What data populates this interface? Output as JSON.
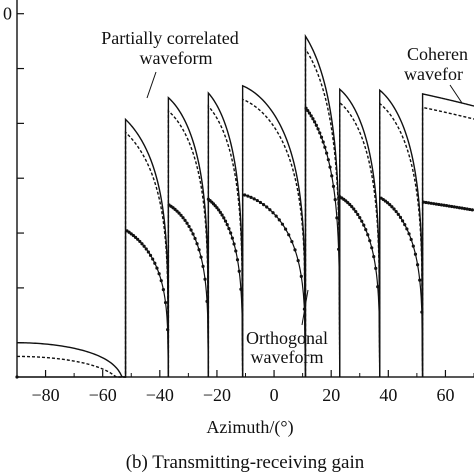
{
  "chart_data": {
    "type": "line",
    "title": "",
    "xlabel": "Azimuth/(°)",
    "ylabel": "",
    "caption": "(b) Transmitting-receiving gain",
    "xlim": [
      -90,
      70
    ],
    "ylim": [
      -53,
      2
    ],
    "x_ticks": [
      -80,
      -60,
      -40,
      -20,
      0,
      20,
      40,
      60
    ],
    "x_tick_labels": [
      "−80",
      "−60",
      "−40",
      "−20",
      "0",
      "20",
      "40",
      "60"
    ],
    "y_tick_labels": [
      "0",
      "",
      "",
      "",
      "",
      "",
      ""
    ],
    "y_ticks": [
      0,
      -8,
      -16,
      -24,
      -32,
      -40,
      -48
    ],
    "grid": false,
    "annotations": [
      {
        "text": "Partially correlated",
        "target_series": "partially_correlated"
      },
      {
        "text": "waveform",
        "target_series": "partially_correlated"
      },
      {
        "text": "Coheren",
        "target_series": "coherent"
      },
      {
        "text": "wavefor",
        "target_series": "coherent"
      },
      {
        "text": "Orthogonal",
        "target_series": "orthogonal"
      },
      {
        "text": "waveform",
        "target_series": "orthogonal"
      }
    ],
    "series": [
      {
        "key": "coherent",
        "style": "solid",
        "color": "#111111",
        "nulls": [
          -52,
          -37,
          -23,
          -11,
          11,
          23,
          37,
          52
        ],
        "peaks": [
          [
            -90,
            -48
          ],
          [
            -65,
            -13
          ],
          [
            -44,
            -11
          ],
          [
            -30,
            -10
          ],
          [
            -17,
            -10
          ],
          [
            0,
            0
          ],
          [
            17,
            -10
          ],
          [
            30,
            -10
          ],
          [
            44,
            -11
          ],
          [
            63,
            -13
          ],
          [
            70,
            -14
          ]
        ]
      },
      {
        "key": "partially_correlated",
        "style": "dashed",
        "color": "#111111",
        "nulls": [
          -52,
          -37,
          -23,
          -11,
          11,
          23,
          37,
          52
        ],
        "peaks": [
          [
            -90,
            -50
          ],
          [
            -65,
            -15
          ],
          [
            -44,
            -13
          ],
          [
            -30,
            -12
          ],
          [
            -17,
            -12
          ],
          [
            0,
            -2
          ],
          [
            17,
            -12
          ],
          [
            30,
            -12
          ],
          [
            44,
            -13
          ],
          [
            63,
            -15
          ],
          [
            70,
            -16
          ]
        ]
      },
      {
        "key": "orthogonal",
        "style": "dotted-marker",
        "color": "#111111",
        "nulls": [
          -52,
          -37,
          -23,
          -11,
          11,
          23,
          37,
          52
        ],
        "peaks": [
          [
            -90,
            -53
          ],
          [
            -65,
            -30
          ],
          [
            -44,
            -27
          ],
          [
            -30,
            -26
          ],
          [
            -17,
            -26
          ],
          [
            0,
            -11
          ],
          [
            17,
            -26
          ],
          [
            30,
            -26
          ],
          [
            44,
            -27
          ],
          [
            63,
            -30
          ],
          [
            70,
            -31
          ]
        ]
      }
    ]
  }
}
